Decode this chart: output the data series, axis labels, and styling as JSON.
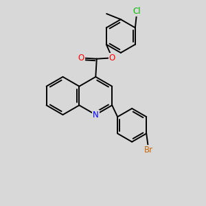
{
  "background_color": "#d8d8d8",
  "bond_color": "#000000",
  "bond_width": 1.4,
  "atom_colors": {
    "N": "#0000ff",
    "O": "#ff0000",
    "Cl": "#00bb00",
    "Br": "#cc6600"
  },
  "font_size": 8.5,
  "figsize": [
    3.0,
    3.0
  ],
  "dpi": 100
}
